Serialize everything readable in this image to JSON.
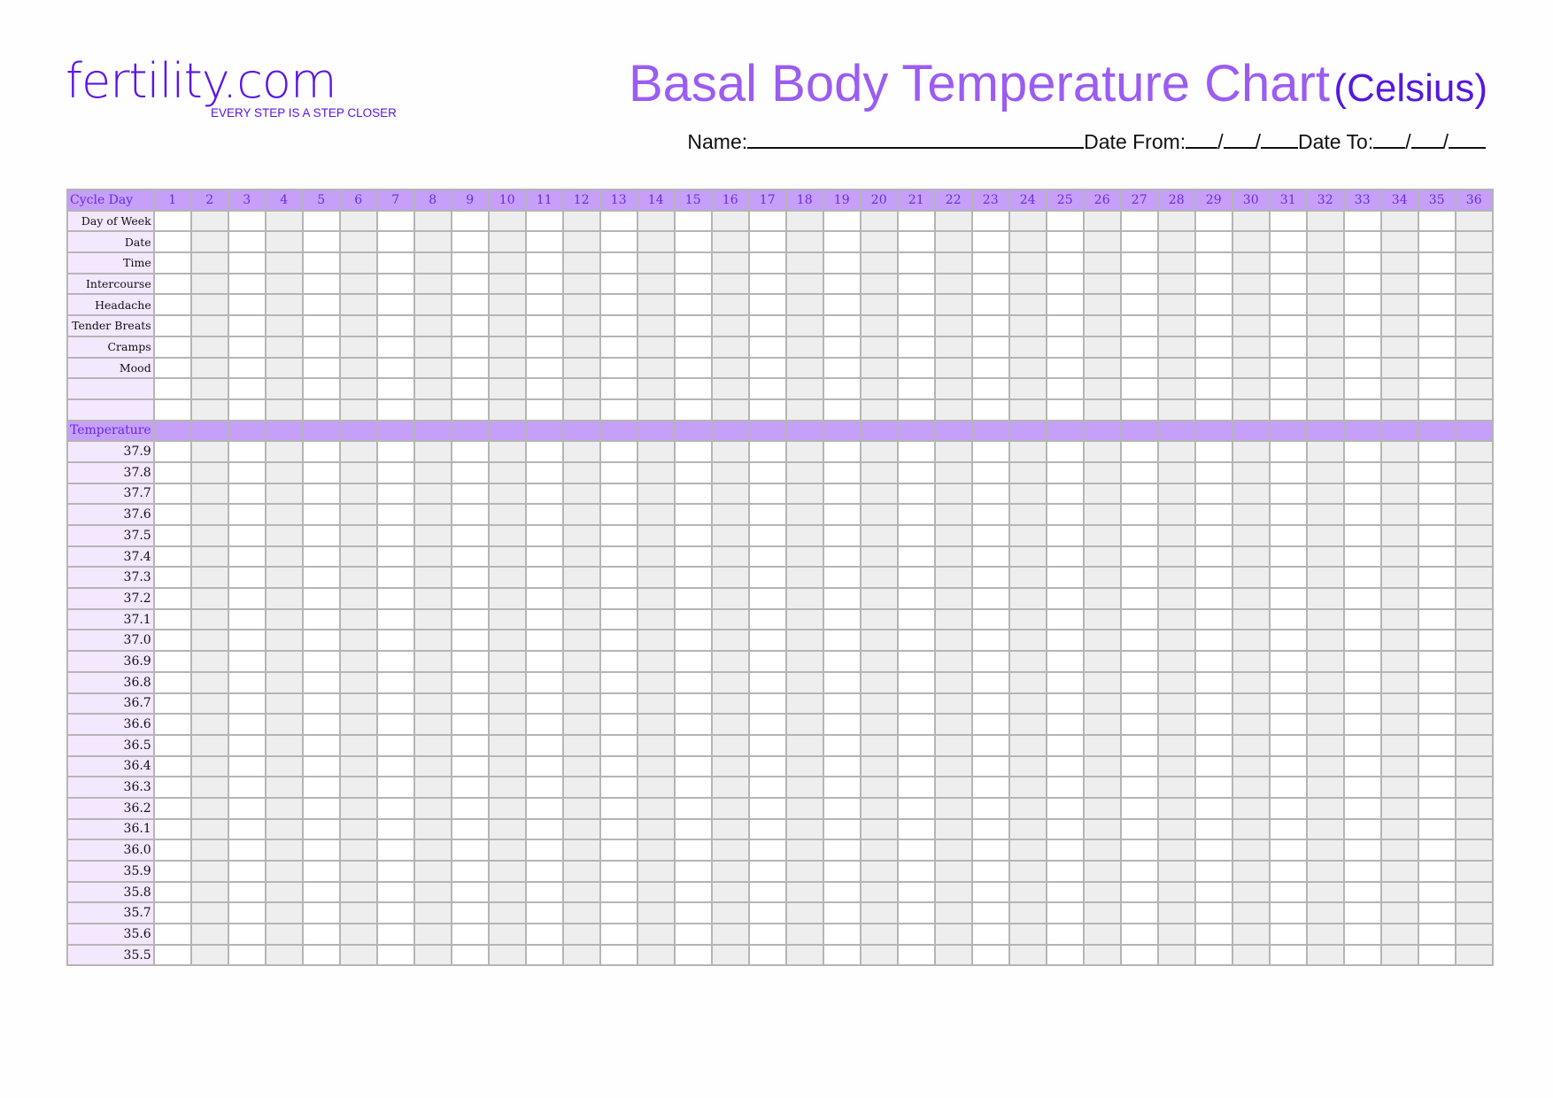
{
  "logo": {
    "text": "fertility.com",
    "tagline": "EVERY STEP IS A STEP CLOSER"
  },
  "title": {
    "main": "Basal Body Temperature Chart",
    "unit": "(Celsius)"
  },
  "fields": {
    "name_label": "Name:",
    "date_from_label": "Date From:",
    "date_to_label": "Date To:",
    "date_separator": "/"
  },
  "colors": {
    "header_bg": "#c69ff8",
    "label_bg": "#f3e8fd",
    "alt_cell": "#eeeeee",
    "brand": "#5b16e6",
    "title": "#9b5cf2"
  },
  "table": {
    "header_label": "Cycle Day",
    "days": [
      "1",
      "2",
      "3",
      "4",
      "5",
      "6",
      "7",
      "8",
      "9",
      "10",
      "11",
      "12",
      "13",
      "14",
      "15",
      "16",
      "17",
      "18",
      "19",
      "20",
      "21",
      "22",
      "23",
      "24",
      "25",
      "26",
      "27",
      "28",
      "29",
      "30",
      "31",
      "32",
      "33",
      "34",
      "35",
      "36"
    ],
    "info_rows": [
      "Day of Week",
      "Date",
      "Time",
      "Intercourse",
      "Headache",
      "Tender Breats",
      "Cramps",
      "Mood",
      "",
      ""
    ],
    "temperature_label": "Temperature",
    "temperatures": [
      "37.9",
      "37.8",
      "37.7",
      "37.6",
      "37.5",
      "37.4",
      "37.3",
      "37.2",
      "37.1",
      "37.0",
      "36.9",
      "36.8",
      "36.7",
      "36.6",
      "36.5",
      "36.4",
      "36.3",
      "36.2",
      "36.1",
      "36.0",
      "35.9",
      "35.8",
      "35.7",
      "35.6",
      "35.5"
    ]
  }
}
